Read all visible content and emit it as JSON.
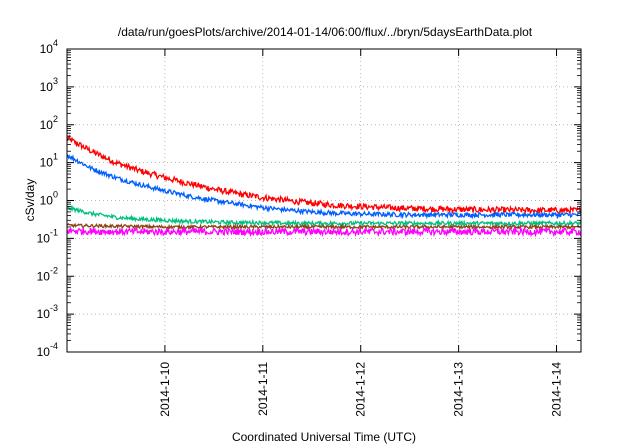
{
  "chart_data": {
    "type": "line",
    "title": "/data/run/goesPlots/archive/2014-01-14/06:00/flux/../bryn/5daysEarthData.plot",
    "xlabel": "Coordinated Universal Time (UTC)",
    "ylabel": "cSv/day",
    "yscale": "log",
    "ylim": [
      0.0001,
      10000
    ],
    "xlim": [
      "2014-01-09 00:00",
      "2014-01-14 06:00"
    ],
    "grid": true,
    "legend": "none",
    "x_ticks": [
      {
        "x": "2014-01-10 00:00",
        "label": "2014-1-10"
      },
      {
        "x": "2014-01-11 00:00",
        "label": "2014-1-11"
      },
      {
        "x": "2014-01-12 00:00",
        "label": "2014-1-12"
      },
      {
        "x": "2014-01-13 00:00",
        "label": "2014-1-13"
      },
      {
        "x": "2014-01-14 00:00",
        "label": "2014-1-14"
      }
    ],
    "y_ticks": [
      {
        "value": 0.0001,
        "base": "10",
        "exp": "-4"
      },
      {
        "value": 0.001,
        "base": "10",
        "exp": "-3"
      },
      {
        "value": 0.01,
        "base": "10",
        "exp": "-2"
      },
      {
        "value": 0.1,
        "base": "10",
        "exp": "-1"
      },
      {
        "value": 1,
        "base": "10",
        "exp": "0"
      },
      {
        "value": 10,
        "base": "10",
        "exp": "1"
      },
      {
        "value": 100,
        "base": "10",
        "exp": "2"
      },
      {
        "value": 1000,
        "base": "10",
        "exp": "3"
      },
      {
        "value": 10000,
        "base": "10",
        "exp": "4"
      }
    ],
    "series": [
      {
        "color": "#ff0000",
        "x": [
          "2014-01-09 00:00",
          "2014-01-09 06:00",
          "2014-01-09 12:00",
          "2014-01-09 18:00",
          "2014-01-10 00:00",
          "2014-01-10 06:00",
          "2014-01-10 12:00",
          "2014-01-10 18:00",
          "2014-01-11 00:00",
          "2014-01-11 06:00",
          "2014-01-11 12:00",
          "2014-01-11 18:00",
          "2014-01-12 00:00",
          "2014-01-12 06:00",
          "2014-01-12 12:00",
          "2014-01-12 18:00",
          "2014-01-13 00:00",
          "2014-01-13 06:00",
          "2014-01-13 12:00",
          "2014-01-13 18:00",
          "2014-01-14 00:00",
          "2014-01-14 06:00"
        ],
        "y": [
          45,
          20,
          10,
          6,
          4,
          2.8,
          2.0,
          1.5,
          1.2,
          1.0,
          0.85,
          0.75,
          0.7,
          0.65,
          0.62,
          0.6,
          0.58,
          0.57,
          0.56,
          0.55,
          0.55,
          0.55
        ]
      },
      {
        "color": "#0060ff",
        "x": [
          "2014-01-09 00:00",
          "2014-01-09 06:00",
          "2014-01-09 12:00",
          "2014-01-09 18:00",
          "2014-01-10 00:00",
          "2014-01-10 06:00",
          "2014-01-10 12:00",
          "2014-01-10 18:00",
          "2014-01-11 00:00",
          "2014-01-11 06:00",
          "2014-01-11 12:00",
          "2014-01-11 18:00",
          "2014-01-12 00:00",
          "2014-01-12 06:00",
          "2014-01-12 12:00",
          "2014-01-12 18:00",
          "2014-01-13 00:00",
          "2014-01-13 06:00",
          "2014-01-13 12:00",
          "2014-01-13 18:00",
          "2014-01-14 00:00",
          "2014-01-14 06:00"
        ],
        "y": [
          16,
          7,
          4,
          2.6,
          1.8,
          1.3,
          1.0,
          0.8,
          0.65,
          0.56,
          0.5,
          0.46,
          0.44,
          0.43,
          0.42,
          0.42,
          0.42,
          0.42,
          0.42,
          0.42,
          0.42,
          0.42
        ]
      },
      {
        "color": "#00c080",
        "x": [
          "2014-01-09 00:00",
          "2014-01-09 06:00",
          "2014-01-09 12:00",
          "2014-01-09 18:00",
          "2014-01-10 00:00",
          "2014-01-10 06:00",
          "2014-01-10 12:00",
          "2014-01-10 18:00",
          "2014-01-11 00:00",
          "2014-01-11 06:00",
          "2014-01-11 12:00",
          "2014-01-11 18:00",
          "2014-01-12 00:00",
          "2014-01-12 06:00",
          "2014-01-12 12:00",
          "2014-01-12 18:00",
          "2014-01-13 00:00",
          "2014-01-13 06:00",
          "2014-01-13 12:00",
          "2014-01-13 18:00",
          "2014-01-14 00:00",
          "2014-01-14 06:00"
        ],
        "y": [
          0.65,
          0.45,
          0.36,
          0.32,
          0.3,
          0.28,
          0.27,
          0.26,
          0.26,
          0.25,
          0.25,
          0.25,
          0.25,
          0.25,
          0.25,
          0.25,
          0.25,
          0.25,
          0.25,
          0.25,
          0.25,
          0.25
        ]
      },
      {
        "color": "#8b4513",
        "x": [
          "2014-01-09 00:00",
          "2014-01-09 12:00",
          "2014-01-10 00:00",
          "2014-01-10 12:00",
          "2014-01-11 00:00",
          "2014-01-11 12:00",
          "2014-01-12 00:00",
          "2014-01-12 12:00",
          "2014-01-13 00:00",
          "2014-01-13 12:00",
          "2014-01-14 00:00",
          "2014-01-14 06:00"
        ],
        "y": [
          0.22,
          0.21,
          0.2,
          0.2,
          0.2,
          0.2,
          0.2,
          0.2,
          0.2,
          0.2,
          0.2,
          0.2
        ]
      },
      {
        "color": "#ff00ff",
        "x": [
          "2014-01-09 00:00",
          "2014-01-09 12:00",
          "2014-01-10 00:00",
          "2014-01-10 12:00",
          "2014-01-11 00:00",
          "2014-01-11 12:00",
          "2014-01-12 00:00",
          "2014-01-12 12:00",
          "2014-01-13 00:00",
          "2014-01-13 12:00",
          "2014-01-14 00:00",
          "2014-01-14 06:00"
        ],
        "y": [
          0.16,
          0.15,
          0.15,
          0.15,
          0.15,
          0.15,
          0.15,
          0.15,
          0.15,
          0.15,
          0.15,
          0.15
        ]
      }
    ]
  }
}
